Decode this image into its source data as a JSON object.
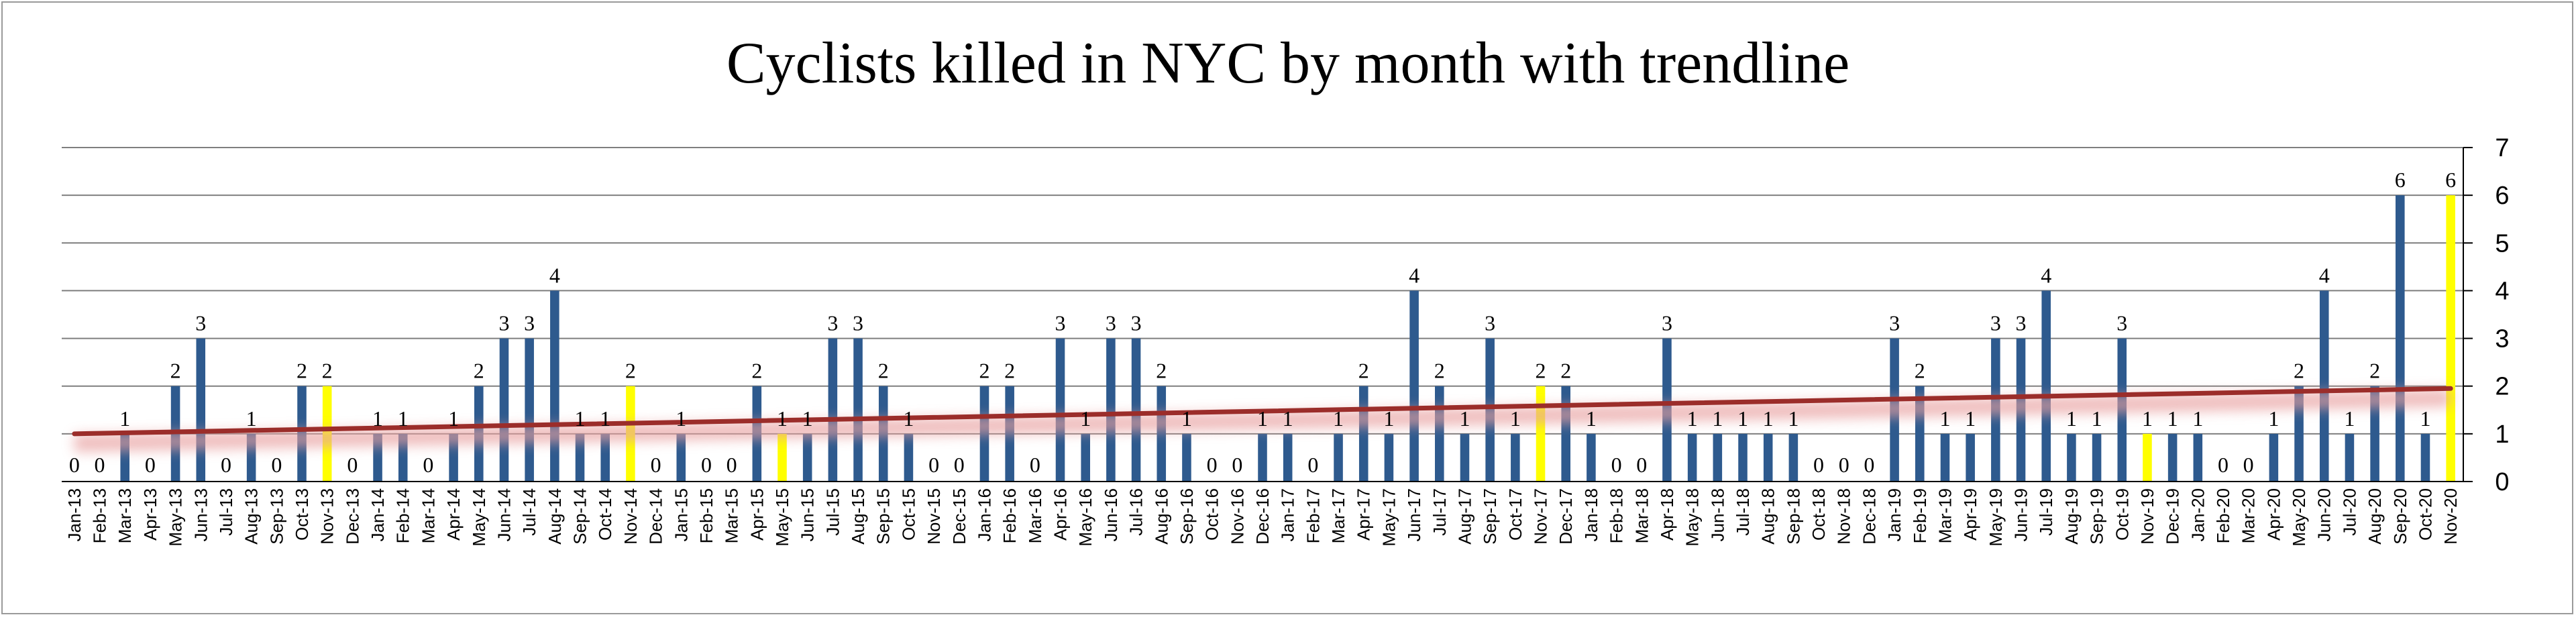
{
  "chart_data": {
    "type": "bar",
    "title": "Cyclists killed in NYC  by month with trendline",
    "xlabel": "",
    "ylabel": "",
    "ylim": [
      0,
      7
    ],
    "yticks": [
      0,
      1,
      2,
      3,
      4,
      5,
      6,
      7
    ],
    "y_axis_side": "right",
    "grid": true,
    "legend": "none",
    "colors": {
      "bar": "#2e5a8e",
      "highlight": "#ffff00",
      "trendline": "#9b2d2a",
      "trend_glow": "#e8a0a0",
      "grid": "#7f7f7f"
    },
    "categories": [
      "Jan-13",
      "Feb-13",
      "Mar-13",
      "Apr-13",
      "May-13",
      "Jun-13",
      "Jul-13",
      "Aug-13",
      "Sep-13",
      "Oct-13",
      "Nov-13",
      "Dec-13",
      "Jan-14",
      "Feb-14",
      "Mar-14",
      "Apr-14",
      "May-14",
      "Jun-14",
      "Jul-14",
      "Aug-14",
      "Sep-14",
      "Oct-14",
      "Nov-14",
      "Dec-14",
      "Jan-15",
      "Feb-15",
      "Mar-15",
      "Apr-15",
      "May-15",
      "Jun-15",
      "Jul-15",
      "Aug-15",
      "Sep-15",
      "Oct-15",
      "Nov-15",
      "Dec-15",
      "Jan-16",
      "Feb-16",
      "Mar-16",
      "Apr-16",
      "May-16",
      "Jun-16",
      "Jul-16",
      "Aug-16",
      "Sep-16",
      "Oct-16",
      "Nov-16",
      "Dec-16",
      "Jan-17",
      "Feb-17",
      "Mar-17",
      "Apr-17",
      "May-17",
      "Jun-17",
      "Jul-17",
      "Aug-17",
      "Sep-17",
      "Oct-17",
      "Nov-17",
      "Dec-17",
      "Jan-18",
      "Feb-18",
      "Mar-18",
      "Apr-18",
      "May-18",
      "Jun-18",
      "Jul-18",
      "Aug-18",
      "Sep-18",
      "Oct-18",
      "Nov-18",
      "Dec-18",
      "Jan-19",
      "Feb-19",
      "Mar-19",
      "Apr-19",
      "May-19",
      "Jun-19",
      "Jul-19",
      "Aug-19",
      "Sep-19",
      "Oct-19",
      "Nov-19",
      "Dec-19",
      "Jan-20",
      "Feb-20",
      "Mar-20",
      "Apr-20",
      "May-20",
      "Jun-20",
      "Jul-20",
      "Aug-20",
      "Sep-20",
      "Oct-20",
      "Nov-20"
    ],
    "series": [
      {
        "values": [
          0,
          0,
          1,
          0,
          2,
          3,
          0,
          1,
          0,
          2,
          2,
          0,
          1,
          1,
          0,
          1,
          2,
          3,
          3,
          4,
          1,
          1,
          2,
          0,
          1,
          0,
          0,
          2,
          1,
          1,
          3,
          3,
          2,
          1,
          0,
          0,
          2,
          2,
          0,
          3,
          1,
          3,
          3,
          2,
          1,
          0,
          0,
          1,
          1,
          0,
          1,
          2,
          1,
          4,
          2,
          1,
          3,
          1,
          2,
          2,
          1,
          0,
          0,
          3,
          1,
          1,
          1,
          1,
          1,
          0,
          0,
          0,
          3,
          2,
          1,
          1,
          3,
          3,
          4,
          1,
          1,
          3,
          1,
          1,
          1,
          0,
          0,
          1,
          2,
          4,
          1,
          2,
          6,
          1,
          6
        ],
        "highlighted_months": [
          "Nov-13",
          "Nov-14",
          "May-15",
          "Nov-17",
          "Nov-19",
          "Nov-20"
        ]
      }
    ],
    "trendline": {
      "type": "linear",
      "start": 1.0,
      "end": 1.95
    }
  }
}
